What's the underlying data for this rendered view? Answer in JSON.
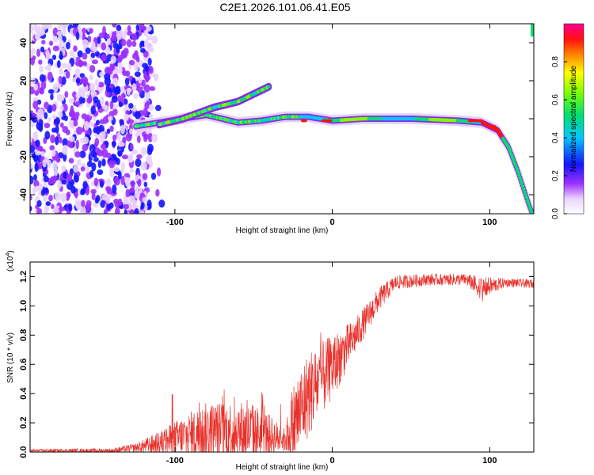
{
  "title": "C2E1.2026.101.06.41.E05",
  "chart_data": [
    {
      "type": "heatmap",
      "xlabel": "Height of straight line (km)",
      "ylabel": "Frequency (Hz)",
      "xlim": [
        -192,
        128
      ],
      "ylim": [
        -50,
        50
      ],
      "xticks": [
        -100,
        0,
        100
      ],
      "yticks": [
        -40,
        -20,
        0,
        20,
        40
      ],
      "ridge": [
        {
          "x": -125,
          "y": -4
        },
        {
          "x": -110,
          "y": -2
        },
        {
          "x": -95,
          "y": 0
        },
        {
          "x": -80,
          "y": 2
        },
        {
          "x": -60,
          "y": -2
        },
        {
          "x": -45,
          "y": -1
        },
        {
          "x": -30,
          "y": 1
        },
        {
          "x": -15,
          "y": 1
        },
        {
          "x": 0,
          "y": -1
        },
        {
          "x": 20,
          "y": 0
        },
        {
          "x": 50,
          "y": 0
        },
        {
          "x": 80,
          "y": -1
        },
        {
          "x": 95,
          "y": -2
        },
        {
          "x": 105,
          "y": -6
        },
        {
          "x": 112,
          "y": -15
        },
        {
          "x": 118,
          "y": -28
        },
        {
          "x": 124,
          "y": -43
        },
        {
          "x": 127,
          "y": -50
        }
      ],
      "branch": [
        {
          "x": -110,
          "y": -3
        },
        {
          "x": -95,
          "y": 0
        },
        {
          "x": -85,
          "y": 3
        },
        {
          "x": -75,
          "y": 6
        },
        {
          "x": -60,
          "y": 9
        },
        {
          "x": -50,
          "y": 13
        },
        {
          "x": -40,
          "y": 17
        }
      ],
      "colorbar": {
        "label": "Normalized spectral amplitude",
        "range": [
          0,
          1
        ],
        "ticks": [
          0.0,
          0.2,
          0.4,
          0.6,
          0.8
        ]
      }
    },
    {
      "type": "line",
      "xlabel": "Height of straight line (km)",
      "ylabel": "SNR (10 * v/v)",
      "yscale_label": "(x10",
      "yscale_exp": "4",
      "yscale_close": ")",
      "xlim": [
        -192,
        128
      ],
      "ylim": [
        0,
        1.3
      ],
      "xticks": [
        -100,
        0,
        100
      ],
      "yticks": [
        "0.0",
        "0.2",
        "0.4",
        "0.6",
        "0.8",
        "1.0",
        "1.2"
      ],
      "series": [
        {
          "name": "SNR",
          "color": "#e8312b",
          "envelope": [
            {
              "x": -192,
              "base": 0.01,
              "amp": 0.01
            },
            {
              "x": -140,
              "base": 0.01,
              "amp": 0.015
            },
            {
              "x": -125,
              "base": 0.03,
              "amp": 0.03
            },
            {
              "x": -110,
              "base": 0.06,
              "amp": 0.08
            },
            {
              "x": -95,
              "base": 0.1,
              "amp": 0.15
            },
            {
              "x": -80,
              "base": 0.14,
              "amp": 0.2
            },
            {
              "x": -60,
              "base": 0.14,
              "amp": 0.22
            },
            {
              "x": -45,
              "base": 0.13,
              "amp": 0.18
            },
            {
              "x": -30,
              "base": 0.08,
              "amp": 0.08
            },
            {
              "x": -25,
              "base": 0.18,
              "amp": 0.3
            },
            {
              "x": -15,
              "base": 0.4,
              "amp": 0.3
            },
            {
              "x": 0,
              "base": 0.58,
              "amp": 0.22
            },
            {
              "x": 15,
              "base": 0.8,
              "amp": 0.12
            },
            {
              "x": 30,
              "base": 1.05,
              "amp": 0.08
            },
            {
              "x": 40,
              "base": 1.16,
              "amp": 0.05
            },
            {
              "x": 60,
              "base": 1.18,
              "amp": 0.04
            },
            {
              "x": 85,
              "base": 1.18,
              "amp": 0.04
            },
            {
              "x": 95,
              "base": 1.12,
              "amp": 0.08
            },
            {
              "x": 110,
              "base": 1.16,
              "amp": 0.03
            },
            {
              "x": 128,
              "base": 1.15,
              "amp": 0.03
            }
          ]
        }
      ]
    }
  ]
}
